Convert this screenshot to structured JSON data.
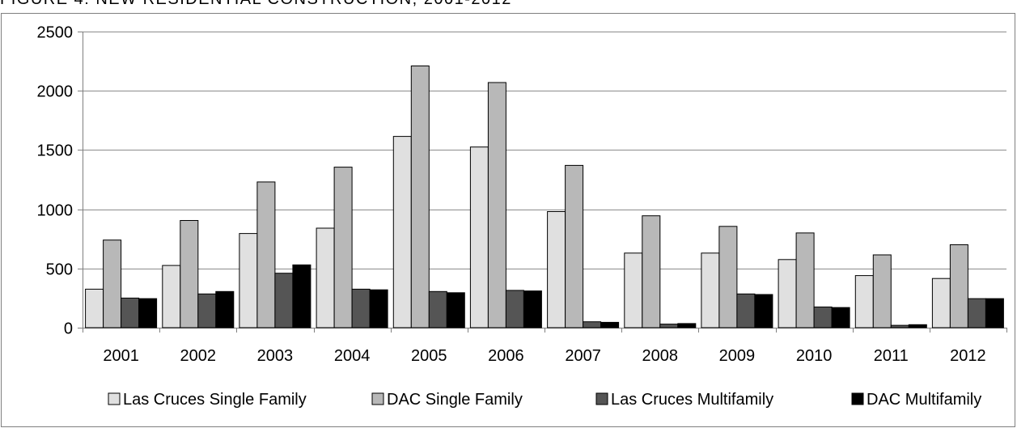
{
  "figure": {
    "title": "FIGURE 4: NEW RESIDENTIAL CONSTRUCTION, 2001-2012"
  },
  "chart_data": {
    "type": "bar",
    "title": "",
    "xlabel": "",
    "ylabel": "",
    "ylim": [
      0,
      2500
    ],
    "yticks": [
      0,
      500,
      1000,
      1500,
      2000,
      2500
    ],
    "grid": true,
    "legend_position": "bottom",
    "categories": [
      "2001",
      "2002",
      "2003",
      "2004",
      "2005",
      "2006",
      "2007",
      "2008",
      "2009",
      "2010",
      "2011",
      "2012"
    ],
    "series": [
      {
        "name": "Las Cruces Single Family",
        "color": "#e0e0e0",
        "values": [
          325,
          525,
          795,
          840,
          1615,
          1525,
          980,
          630,
          630,
          575,
          440,
          415
        ]
      },
      {
        "name": "DAC Single Family",
        "color": "#b8b8b8",
        "values": [
          740,
          905,
          1230,
          1355,
          2210,
          2070,
          1370,
          945,
          855,
          800,
          615,
          700
        ]
      },
      {
        "name": "Las Cruces Multifamily",
        "color": "#555555",
        "values": [
          250,
          285,
          460,
          325,
          305,
          315,
          50,
          30,
          285,
          175,
          20,
          245
        ]
      },
      {
        "name": "DAC Multifamily",
        "color": "#000000",
        "values": [
          245,
          305,
          530,
          320,
          295,
          310,
          45,
          35,
          280,
          170,
          25,
          245
        ]
      }
    ]
  }
}
